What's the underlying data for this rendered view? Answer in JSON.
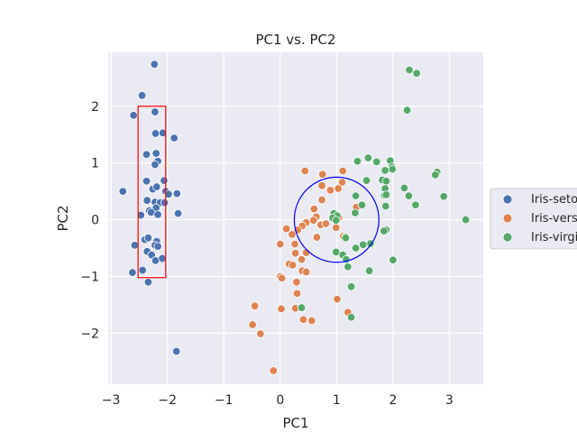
{
  "chart_data": {
    "type": "scatter",
    "title": "PC1 vs. PC2",
    "xlabel": "PC1",
    "ylabel": "PC2",
    "xlim": [
      -3.05,
      3.6
    ],
    "ylim": [
      -2.9,
      2.95
    ],
    "xticks": [
      -3,
      -2,
      -1,
      0,
      1,
      2,
      3
    ],
    "yticks": [
      -2,
      -1,
      0,
      1,
      2
    ],
    "xtick_labels": [
      "−3",
      "−2",
      "−1",
      "0",
      "1",
      "2",
      "3"
    ],
    "ytick_labels": [
      "−2",
      "−1",
      "0",
      "1",
      "2"
    ],
    "grid": true,
    "legend_position": "right",
    "series": [
      {
        "name": "Iris-setosa",
        "color": "#4c72b0",
        "points": [
          [
            -2.23,
            2.74
          ],
          [
            -2.45,
            2.19
          ],
          [
            -2.6,
            1.84
          ],
          [
            -2.22,
            1.9
          ],
          [
            -2.21,
            1.52
          ],
          [
            -2.08,
            1.53
          ],
          [
            -1.88,
            1.44
          ],
          [
            -2.37,
            1.15
          ],
          [
            -2.2,
            1.17
          ],
          [
            -2.17,
            1.03
          ],
          [
            -2.22,
            0.97
          ],
          [
            -2.37,
            0.68
          ],
          [
            -2.06,
            0.69
          ],
          [
            -2.26,
            0.54
          ],
          [
            -2.19,
            0.58
          ],
          [
            -2.03,
            0.5
          ],
          [
            -1.98,
            0.45
          ],
          [
            -1.83,
            0.46
          ],
          [
            -2.79,
            0.5
          ],
          [
            -2.36,
            0.34
          ],
          [
            -2.32,
            0.16
          ],
          [
            -2.22,
            0.31
          ],
          [
            -2.13,
            0.3
          ],
          [
            -2.05,
            0.3
          ],
          [
            -2.47,
            0.08
          ],
          [
            -2.2,
            0.21
          ],
          [
            -2.29,
            0.13
          ],
          [
            -2.17,
            0.09
          ],
          [
            -1.81,
            0.11
          ],
          [
            -2.4,
            -0.35
          ],
          [
            -2.34,
            -0.32
          ],
          [
            -2.19,
            -0.38
          ],
          [
            -2.22,
            -0.45
          ],
          [
            -2.17,
            -0.47
          ],
          [
            -2.58,
            -0.45
          ],
          [
            -2.36,
            -0.56
          ],
          [
            -2.28,
            -0.62
          ],
          [
            -2.09,
            -0.7
          ],
          [
            -2.21,
            -0.72
          ],
          [
            -2.09,
            -0.68
          ],
          [
            -2.62,
            -0.93
          ],
          [
            -2.44,
            -0.89
          ],
          [
            -2.34,
            -1.1
          ],
          [
            -1.84,
            -2.32
          ]
        ]
      },
      {
        "name": "Iris-versicolor",
        "color": "#dd8452",
        "points": [
          [
            0.44,
            0.86
          ],
          [
            0.75,
            0.8
          ],
          [
            1.11,
            0.86
          ],
          [
            0.74,
            0.6
          ],
          [
            1.1,
            0.66
          ],
          [
            0.74,
            0.35
          ],
          [
            0.89,
            0.52
          ],
          [
            1.03,
            0.55
          ],
          [
            1.35,
            0.22
          ],
          [
            0.6,
            0.19
          ],
          [
            1.04,
            0.04
          ],
          [
            0.64,
            0.05
          ],
          [
            0.59,
            -0.01
          ],
          [
            0.46,
            -0.05
          ],
          [
            0.39,
            -0.11
          ],
          [
            0.11,
            -0.16
          ],
          [
            0.31,
            -0.18
          ],
          [
            0.21,
            -0.26
          ],
          [
            0.72,
            -0.09
          ],
          [
            0.81,
            -0.07
          ],
          [
            0.99,
            -0.14
          ],
          [
            1.12,
            -0.29
          ],
          [
            0.0,
            -0.43
          ],
          [
            0.26,
            -0.43
          ],
          [
            0.65,
            -0.31
          ],
          [
            0.27,
            -0.59
          ],
          [
            0.46,
            -0.58
          ],
          [
            0.16,
            -0.78
          ],
          [
            0.22,
            -0.8
          ],
          [
            0.38,
            -0.7
          ],
          [
            0.39,
            -0.9
          ],
          [
            0.46,
            -0.92
          ],
          [
            0.0,
            -1.0
          ],
          [
            0.29,
            -1.1
          ],
          [
            0.03,
            -1.03
          ],
          [
            0.3,
            -1.3
          ],
          [
            1.01,
            -1.4
          ],
          [
            0.38,
            -1.56
          ],
          [
            0.27,
            -1.56
          ],
          [
            0.02,
            -1.57
          ],
          [
            0.41,
            -1.76
          ],
          [
            0.56,
            -1.78
          ],
          [
            -0.45,
            -1.52
          ],
          [
            -0.49,
            -1.85
          ],
          [
            -0.35,
            -2.01
          ],
          [
            -0.12,
            -2.66
          ],
          [
            1.2,
            -1.63
          ]
        ]
      },
      {
        "name": "Iris-virginica",
        "color": "#55a868",
        "points": [
          [
            2.29,
            2.64
          ],
          [
            2.42,
            2.58
          ],
          [
            2.25,
            1.93
          ],
          [
            1.37,
            1.03
          ],
          [
            1.56,
            1.09
          ],
          [
            1.71,
            1.02
          ],
          [
            1.95,
            1.04
          ],
          [
            1.98,
            0.93
          ],
          [
            1.99,
            0.89
          ],
          [
            1.86,
            0.87
          ],
          [
            2.78,
            0.84
          ],
          [
            2.75,
            0.79
          ],
          [
            1.81,
            0.7
          ],
          [
            1.53,
            0.69
          ],
          [
            1.88,
            0.68
          ],
          [
            2.2,
            0.56
          ],
          [
            1.86,
            0.55
          ],
          [
            2.9,
            0.41
          ],
          [
            2.28,
            0.42
          ],
          [
            1.85,
            0.43
          ],
          [
            1.88,
            0.44
          ],
          [
            1.34,
            0.42
          ],
          [
            2.4,
            0.26
          ],
          [
            1.87,
            0.24
          ],
          [
            1.45,
            0.26
          ],
          [
            3.29,
            0.0
          ],
          [
            1.33,
            0.12
          ],
          [
            0.95,
            0.11
          ],
          [
            1.01,
            0.07
          ],
          [
            0.93,
            0.03
          ],
          [
            0.99,
            -0.01
          ],
          [
            1.88,
            -0.18
          ],
          [
            1.84,
            -0.2
          ],
          [
            1.16,
            -0.3
          ],
          [
            1.16,
            -0.32
          ],
          [
            1.6,
            -0.42
          ],
          [
            1.47,
            -0.44
          ],
          [
            1.34,
            -0.5
          ],
          [
            0.99,
            -0.57
          ],
          [
            1.11,
            -0.62
          ],
          [
            1.17,
            -0.7
          ],
          [
            2.0,
            -0.71
          ],
          [
            1.2,
            -0.83
          ],
          [
            1.58,
            -0.9
          ],
          [
            1.26,
            -1.18
          ],
          [
            0.38,
            -1.55
          ],
          [
            1.26,
            -1.72
          ]
        ]
      }
    ],
    "annotations": [
      {
        "kind": "rectangle",
        "color": "#ff0000",
        "x0": -2.52,
        "x1": -2.03,
        "y0": -1.02,
        "y1": 2.0
      },
      {
        "kind": "circle",
        "color": "#0000ff",
        "cx": 1.0,
        "cy": 0.0,
        "r": 0.75
      }
    ]
  }
}
